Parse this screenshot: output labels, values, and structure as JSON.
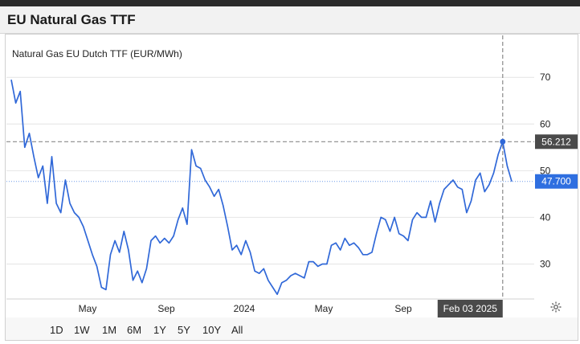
{
  "header": {
    "title": "EU Natural Gas TTF"
  },
  "chart_data": {
    "type": "line",
    "title": "Natural Gas EU Dutch TTF (EUR/MWh)",
    "x_tick_labels": [
      "May",
      "Sep",
      "2024",
      "May",
      "Sep"
    ],
    "y_ticks": [
      30,
      40,
      50,
      60,
      70
    ],
    "ylim": [
      22.5,
      79
    ],
    "grid": "horizontal",
    "crosshair": {
      "date_label": "Feb 03 2025",
      "value_label": "56.212",
      "value": 56.212
    },
    "last_price": {
      "label": "47.700",
      "value": 47.7
    },
    "series": [
      {
        "values": [
          69.5,
          64.5,
          67,
          55,
          58,
          53,
          48.5,
          51,
          43,
          53,
          43,
          41,
          48,
          43,
          41,
          40,
          38,
          35,
          32,
          29.5,
          25,
          24.5,
          32,
          35,
          32.5,
          37,
          33,
          26.5,
          28.5,
          26,
          29,
          35,
          36,
          34.5,
          35.5,
          34.5,
          36,
          39.5,
          42,
          38.5,
          54.5,
          51,
          50.5,
          48,
          46.5,
          44.5,
          46,
          42.5,
          38,
          33,
          34,
          32,
          35,
          32.5,
          28.5,
          28,
          29,
          26.5,
          25,
          23.5,
          26,
          26.5,
          27.5,
          28,
          27.5,
          27,
          30.5,
          30.5,
          29.5,
          30,
          30,
          34,
          34.5,
          33,
          35.5,
          34,
          34.5,
          33.5,
          32,
          32,
          32.5,
          36.5,
          40,
          39.5,
          37,
          40,
          36.5,
          36,
          35,
          39.5,
          41,
          40,
          40,
          43.5,
          39,
          43,
          46,
          47,
          48,
          46.5,
          46,
          41,
          43.5,
          48,
          49.5,
          45.5,
          47,
          49.5,
          53.5,
          56.212,
          51,
          47.7
        ]
      }
    ]
  },
  "toolbar": {
    "ranges": [
      "1D",
      "1W",
      "1M",
      "6M",
      "1Y",
      "5Y",
      "10Y",
      "All"
    ],
    "settings_icon": "gear-icon"
  }
}
